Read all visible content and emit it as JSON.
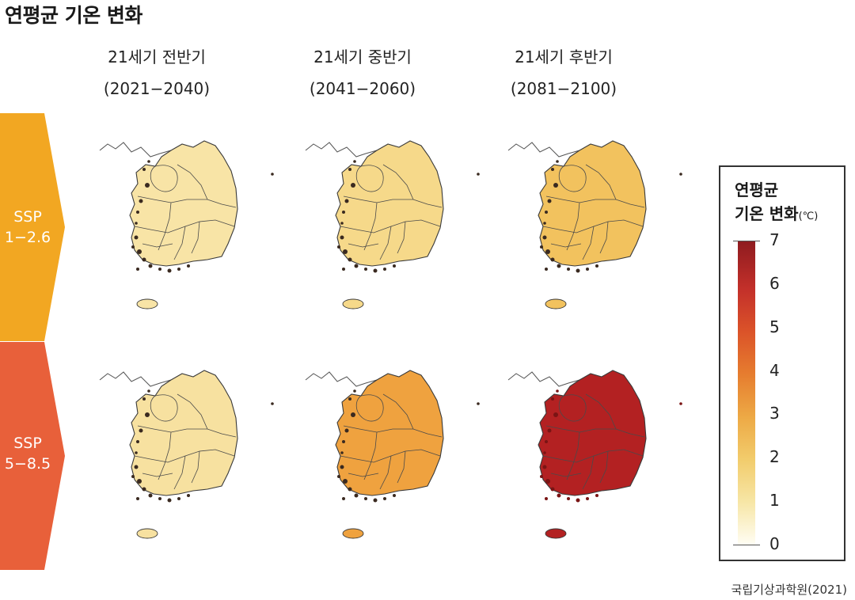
{
  "title": "연평균 기온 변화",
  "columns": [
    {
      "label": "21세기 전반기",
      "period": "(2021−2040)"
    },
    {
      "label": "21세기 중반기",
      "period": "(2041−2060)"
    },
    {
      "label": "21세기 후반기",
      "period": "(2081−2100)"
    }
  ],
  "rows": [
    {
      "line1": "SSP",
      "line2": "1−2.6",
      "color": "#f2a722"
    },
    {
      "line1": "SSP",
      "line2": "5−8.5",
      "color": "#e8603a"
    }
  ],
  "maps": [
    {
      "scenario": "SSP 1-2.6",
      "period": "2021-2040",
      "fill": "#f8e4a6",
      "approx_change_c": 1.3
    },
    {
      "scenario": "SSP 1-2.6",
      "period": "2041-2060",
      "fill": "#f6d98a",
      "approx_change_c": 1.7
    },
    {
      "scenario": "SSP 1-2.6",
      "period": "2081-2100",
      "fill": "#f2c25e",
      "approx_change_c": 2.2
    },
    {
      "scenario": "SSP 5-8.5",
      "period": "2021-2040",
      "fill": "#f7e1a0",
      "approx_change_c": 1.4
    },
    {
      "scenario": "SSP 5-8.5",
      "period": "2041-2060",
      "fill": "#efa23f",
      "approx_change_c": 3.0
    },
    {
      "scenario": "SSP 5-8.5",
      "period": "2081-2100",
      "fill": "#b32122",
      "approx_change_c": 6.3
    }
  ],
  "legend": {
    "title_line1": "연평균",
    "title_line2": "기온 변화",
    "unit": "(℃)",
    "ticks": [
      "7",
      "6",
      "5",
      "4",
      "3",
      "2",
      "1",
      "0"
    ],
    "min": 0,
    "max": 7
  },
  "source": "국립기상과학원(2021)"
}
